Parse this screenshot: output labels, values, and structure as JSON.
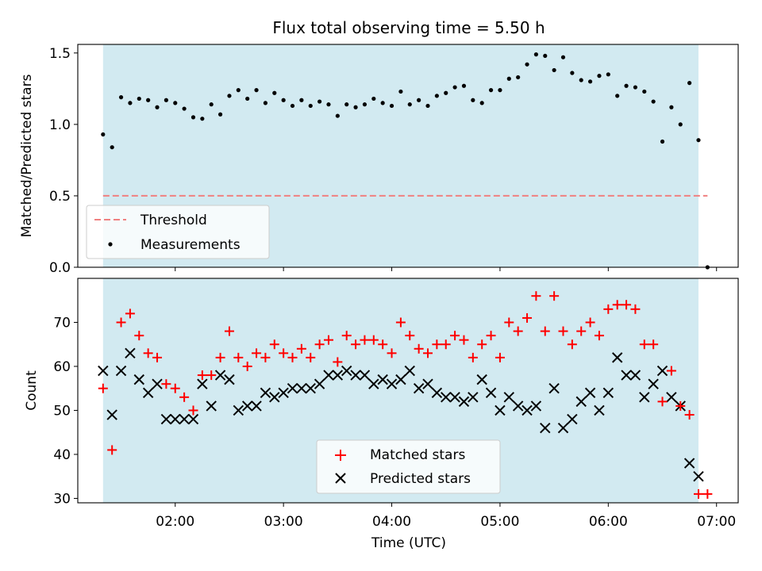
{
  "title": "Flux total observing time = 5.50 h",
  "colors": {
    "observing_band": "#add8e6",
    "threshold": "#f08080",
    "measurement": "#000000",
    "matched": "#ff0000",
    "predicted": "#000000"
  },
  "chart_data": [
    {
      "type": "scatter",
      "ylabel": "Matched/Predicted stars",
      "ylim": [
        0,
        1.56
      ],
      "yticks": [
        "0.0",
        "0.5",
        "1.0",
        "1.5"
      ],
      "xlim": [
        "01:06",
        "07:12"
      ],
      "observing_window": [
        "01:20",
        "06:50"
      ],
      "threshold": 0.5,
      "legend_position": "lower-left",
      "legend": [
        {
          "label": "Threshold",
          "style": "dashed-line"
        },
        {
          "label": "Measurements",
          "style": "dot"
        }
      ],
      "series": [
        {
          "name": "Measurements",
          "points": [
            [
              "01:20",
              0.93
            ],
            [
              "01:25",
              0.84
            ],
            [
              "01:30",
              1.19
            ],
            [
              "01:35",
              1.15
            ],
            [
              "01:40",
              1.18
            ],
            [
              "01:45",
              1.17
            ],
            [
              "01:50",
              1.12
            ],
            [
              "01:55",
              1.17
            ],
            [
              "02:00",
              1.15
            ],
            [
              "02:05",
              1.11
            ],
            [
              "02:10",
              1.05
            ],
            [
              "02:15",
              1.04
            ],
            [
              "02:20",
              1.14
            ],
            [
              "02:25",
              1.07
            ],
            [
              "02:30",
              1.2
            ],
            [
              "02:35",
              1.24
            ],
            [
              "02:40",
              1.18
            ],
            [
              "02:45",
              1.24
            ],
            [
              "02:50",
              1.15
            ],
            [
              "02:55",
              1.22
            ],
            [
              "03:00",
              1.17
            ],
            [
              "03:05",
              1.13
            ],
            [
              "03:10",
              1.17
            ],
            [
              "03:15",
              1.13
            ],
            [
              "03:20",
              1.16
            ],
            [
              "03:25",
              1.14
            ],
            [
              "03:30",
              1.06
            ],
            [
              "03:35",
              1.14
            ],
            [
              "03:40",
              1.12
            ],
            [
              "03:45",
              1.14
            ],
            [
              "03:50",
              1.18
            ],
            [
              "03:55",
              1.15
            ],
            [
              "04:00",
              1.13
            ],
            [
              "04:05",
              1.23
            ],
            [
              "04:10",
              1.14
            ],
            [
              "04:15",
              1.17
            ],
            [
              "04:20",
              1.13
            ],
            [
              "04:25",
              1.2
            ],
            [
              "04:30",
              1.22
            ],
            [
              "04:35",
              1.26
            ],
            [
              "04:40",
              1.27
            ],
            [
              "04:45",
              1.17
            ],
            [
              "04:50",
              1.15
            ],
            [
              "04:55",
              1.24
            ],
            [
              "05:00",
              1.24
            ],
            [
              "05:05",
              1.32
            ],
            [
              "05:10",
              1.33
            ],
            [
              "05:15",
              1.42
            ],
            [
              "05:20",
              1.49
            ],
            [
              "05:25",
              1.48
            ],
            [
              "05:30",
              1.38
            ],
            [
              "05:35",
              1.47
            ],
            [
              "05:40",
              1.36
            ],
            [
              "05:45",
              1.31
            ],
            [
              "05:50",
              1.3
            ],
            [
              "05:55",
              1.34
            ],
            [
              "06:00",
              1.35
            ],
            [
              "06:05",
              1.2
            ],
            [
              "06:10",
              1.27
            ],
            [
              "06:15",
              1.26
            ],
            [
              "06:20",
              1.23
            ],
            [
              "06:25",
              1.16
            ],
            [
              "06:30",
              0.88
            ],
            [
              "06:35",
              1.12
            ],
            [
              "06:40",
              1.0
            ],
            [
              "06:45",
              1.29
            ],
            [
              "06:50",
              0.89
            ],
            [
              "06:55",
              0.0
            ]
          ]
        }
      ]
    },
    {
      "type": "scatter",
      "xlabel": "Time (UTC)",
      "ylabel": "Count",
      "ylim": [
        29,
        80
      ],
      "yticks": [
        "30",
        "40",
        "50",
        "60",
        "70"
      ],
      "xticks": [
        "02:00",
        "03:00",
        "04:00",
        "05:00",
        "06:00",
        "07:00"
      ],
      "xlim": [
        "01:06",
        "07:12"
      ],
      "observing_window": [
        "01:20",
        "06:50"
      ],
      "legend_position": "lower-center",
      "legend": [
        {
          "label": "Matched stars",
          "style": "plus"
        },
        {
          "label": "Predicted stars",
          "style": "x"
        }
      ],
      "x": [
        "01:20",
        "01:25",
        "01:30",
        "01:35",
        "01:40",
        "01:45",
        "01:50",
        "01:55",
        "02:00",
        "02:05",
        "02:10",
        "02:15",
        "02:20",
        "02:25",
        "02:30",
        "02:35",
        "02:40",
        "02:45",
        "02:50",
        "02:55",
        "03:00",
        "03:05",
        "03:10",
        "03:15",
        "03:20",
        "03:25",
        "03:30",
        "03:35",
        "03:40",
        "03:45",
        "03:50",
        "03:55",
        "04:00",
        "04:05",
        "04:10",
        "04:15",
        "04:20",
        "04:25",
        "04:30",
        "04:35",
        "04:40",
        "04:45",
        "04:50",
        "04:55",
        "05:00",
        "05:05",
        "05:10",
        "05:15",
        "05:20",
        "05:25",
        "05:30",
        "05:35",
        "05:40",
        "05:45",
        "05:50",
        "05:55",
        "06:00",
        "06:05",
        "06:10",
        "06:15",
        "06:20",
        "06:25",
        "06:30",
        "06:35",
        "06:40",
        "06:45",
        "06:50",
        "06:55"
      ],
      "series": [
        {
          "name": "Matched stars",
          "values": [
            55,
            41,
            70,
            72,
            67,
            63,
            62,
            56,
            55,
            53,
            50,
            58,
            58,
            62,
            68,
            62,
            60,
            63,
            62,
            65,
            63,
            62,
            64,
            62,
            65,
            66,
            61,
            67,
            65,
            66,
            66,
            65,
            63,
            70,
            67,
            64,
            63,
            65,
            65,
            67,
            66,
            62,
            65,
            67,
            62,
            70,
            68,
            71,
            76,
            68,
            76,
            68,
            65,
            68,
            70,
            67,
            73,
            74,
            74,
            73,
            65,
            65,
            52,
            59,
            51,
            49,
            31,
            31
          ]
        },
        {
          "name": "Predicted stars",
          "values": [
            59,
            49,
            59,
            63,
            57,
            54,
            56,
            48,
            48,
            48,
            48,
            56,
            51,
            58,
            57,
            50,
            51,
            51,
            54,
            53,
            54,
            55,
            55,
            55,
            56,
            58,
            58,
            59,
            58,
            58,
            56,
            57,
            56,
            57,
            59,
            55,
            56,
            54,
            53,
            53,
            52,
            53,
            57,
            54,
            50,
            53,
            51,
            50,
            51,
            46,
            55,
            46,
            48,
            52,
            54,
            50,
            54,
            62,
            58,
            58,
            53,
            56,
            59,
            53,
            51,
            38,
            35,
            null
          ]
        }
      ]
    }
  ]
}
